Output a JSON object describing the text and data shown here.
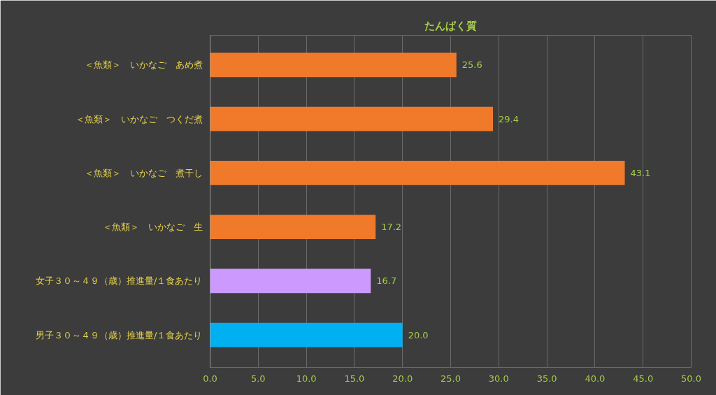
{
  "chart_data": {
    "type": "bar",
    "orientation": "horizontal",
    "title": "たんぱく質",
    "categories": [
      "＜魚類＞　いかなご　あめ煮",
      "＜魚類＞　いかなご　つくだ煮",
      "＜魚類＞　いかなご　煮干し",
      "＜魚類＞　いかなご　生",
      "女子３０～４９（歳）推進量/１食あたり",
      "男子３０～４９（歳）推進量/１食あたり"
    ],
    "values": [
      25.6,
      29.4,
      43.1,
      17.2,
      16.7,
      20.0
    ],
    "value_labels": [
      "25.6",
      "29.4",
      "43.1",
      "17.2",
      "16.7",
      "20.0"
    ],
    "colors": [
      "#f07a2a",
      "#f07a2a",
      "#f07a2a",
      "#f07a2a",
      "#cc99ff",
      "#00b0f0"
    ],
    "xlim": [
      0,
      50
    ],
    "xticks": [
      {
        "value": 0,
        "label": "0.0"
      },
      {
        "value": 5,
        "label": "5.0"
      },
      {
        "value": 10,
        "label": "10.0"
      },
      {
        "value": 15,
        "label": "15.0"
      },
      {
        "value": 20,
        "label": "20.0"
      },
      {
        "value": 25,
        "label": "25.0"
      },
      {
        "value": 30,
        "label": "30.0"
      },
      {
        "value": 35,
        "label": "35.0"
      },
      {
        "value": 40,
        "label": "40.0"
      },
      {
        "value": 45,
        "label": "45.0"
      },
      {
        "value": 50,
        "label": "50.0"
      }
    ],
    "grid": "x"
  }
}
